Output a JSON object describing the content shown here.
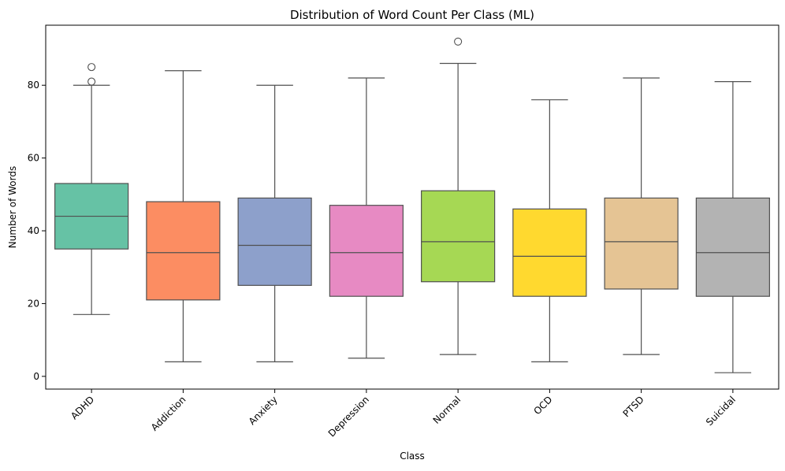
{
  "chart_data": {
    "type": "box",
    "title": "Distribution of Word Count Per Class (ML)",
    "xlabel": "Class",
    "ylabel": "Number of Words",
    "ylim": [
      -3.5,
      96.5
    ],
    "yticks": [
      0,
      20,
      40,
      60,
      80
    ],
    "grid": false,
    "legend": "none",
    "categories": [
      "ADHD",
      "Addiction",
      "Anxiety",
      "Depression",
      "Normal",
      "OCD",
      "PTSD",
      "Suicidal"
    ],
    "boxes": [
      {
        "category": "ADHD",
        "whisker_low": 17,
        "q1": 35,
        "median": 44,
        "q3": 53,
        "whisker_high": 80,
        "outliers": [
          81,
          85
        ],
        "color": "#66c2a5"
      },
      {
        "category": "Addiction",
        "whisker_low": 4,
        "q1": 21,
        "median": 34,
        "q3": 48,
        "whisker_high": 84,
        "outliers": [],
        "color": "#fc8d62"
      },
      {
        "category": "Anxiety",
        "whisker_low": 4,
        "q1": 25,
        "median": 36,
        "q3": 49,
        "whisker_high": 80,
        "outliers": [],
        "color": "#8da0cb"
      },
      {
        "category": "Depression",
        "whisker_low": 5,
        "q1": 22,
        "median": 34,
        "q3": 47,
        "whisker_high": 82,
        "outliers": [],
        "color": "#e78ac3"
      },
      {
        "category": "Normal",
        "whisker_low": 6,
        "q1": 26,
        "median": 37,
        "q3": 51,
        "whisker_high": 86,
        "outliers": [
          92
        ],
        "color": "#a6d854"
      },
      {
        "category": "OCD",
        "whisker_low": 4,
        "q1": 22,
        "median": 33,
        "q3": 46,
        "whisker_high": 76,
        "outliers": [],
        "color": "#ffd92f"
      },
      {
        "category": "PTSD",
        "whisker_low": 6,
        "q1": 24,
        "median": 37,
        "q3": 49,
        "whisker_high": 82,
        "outliers": [],
        "color": "#e5c494"
      },
      {
        "category": "Suicidal",
        "whisker_low": 1,
        "q1": 22,
        "median": 34,
        "q3": 49,
        "whisker_high": 81,
        "outliers": [],
        "color": "#b3b3b3"
      }
    ]
  }
}
